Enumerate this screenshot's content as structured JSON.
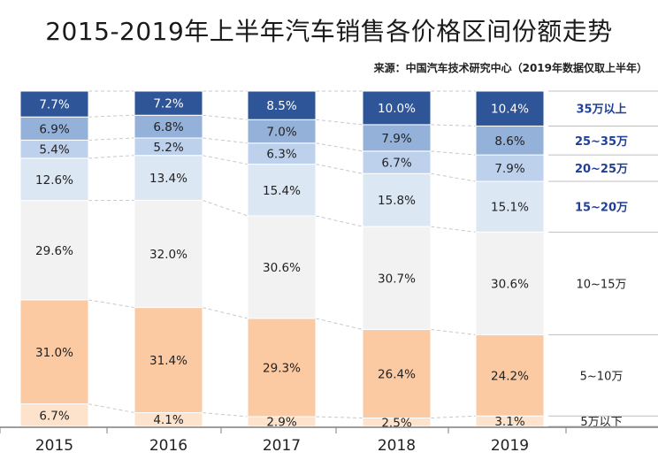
{
  "chart_data": {
    "type": "bar",
    "stacked": true,
    "title": "2015-2019年上半年汽车销售各价格区间份额走势",
    "source": "来源：中国汽车技术研究中心（2019年数据仅取上半年）",
    "categories": [
      "2015",
      "2016",
      "2017",
      "2018",
      "2019"
    ],
    "series": [
      {
        "name": "5万以下",
        "values": [
          6.7,
          4.1,
          2.9,
          2.5,
          3.1
        ],
        "color": "#fde3cc",
        "legend_style": "normal"
      },
      {
        "name": "5~10万",
        "values": [
          31.0,
          31.4,
          29.3,
          26.4,
          24.2
        ],
        "color": "#fbc9a2",
        "legend_style": "normal"
      },
      {
        "name": "10~15万",
        "values": [
          29.6,
          32.0,
          30.6,
          30.7,
          30.6
        ],
        "color": "#f2f2f2",
        "legend_style": "normal"
      },
      {
        "name": "15~20万",
        "values": [
          12.6,
          13.4,
          15.4,
          15.8,
          15.1
        ],
        "color": "#dce7f4",
        "legend_style": "dark"
      },
      {
        "name": "20~25万",
        "values": [
          5.4,
          5.2,
          6.3,
          6.7,
          7.9
        ],
        "color": "#bdd1ec",
        "legend_style": "dark"
      },
      {
        "name": "25~35万",
        "values": [
          6.9,
          6.8,
          7.0,
          7.9,
          8.6
        ],
        "color": "#94b1da",
        "legend_style": "dark"
      },
      {
        "name": "35万以上",
        "values": [
          7.7,
          7.2,
          8.5,
          10.0,
          10.4
        ],
        "color": "#2e5597",
        "legend_style": "dark"
      }
    ],
    "value_format": "{v}%",
    "ylim": [
      0,
      100
    ],
    "grid": false,
    "legend_position": "right"
  }
}
